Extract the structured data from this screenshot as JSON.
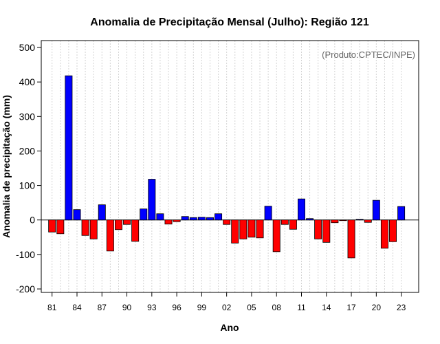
{
  "chart_data": {
    "type": "bar",
    "title": "Anomalia de Precipitação Mensal (Julho): Região 121",
    "xlabel": "Ano",
    "ylabel": "Anomalia de precipitação (mm)",
    "credit": "(Produto:CPTEC/INPE)",
    "ylim": [
      -210,
      520
    ],
    "yticks": [
      -200,
      -100,
      0,
      100,
      200,
      300,
      400,
      500
    ],
    "xlim": [
      1979.7,
      2025.1
    ],
    "xtick_years": [
      1981,
      1984,
      1987,
      1990,
      1993,
      1996,
      1999,
      2002,
      2005,
      2008,
      2011,
      2014,
      2017,
      2020,
      2023
    ],
    "xtick_labels": [
      "81",
      "84",
      "87",
      "90",
      "93",
      "96",
      "99",
      "02",
      "05",
      "08",
      "11",
      "14",
      "17",
      "20",
      "23"
    ],
    "grid": true,
    "colors": {
      "positive": "#0000ff",
      "negative": "#ff0000",
      "grid": "#d3d3d3",
      "axis": "#000000"
    },
    "years": [
      1981,
      1982,
      1983,
      1984,
      1985,
      1986,
      1987,
      1988,
      1989,
      1990,
      1991,
      1992,
      1993,
      1994,
      1995,
      1996,
      1997,
      1998,
      1999,
      2000,
      2001,
      2002,
      2003,
      2004,
      2005,
      2006,
      2007,
      2008,
      2009,
      2010,
      2011,
      2012,
      2013,
      2014,
      2015,
      2016,
      2017,
      2018,
      2019,
      2020,
      2021,
      2022,
      2023
    ],
    "values": [
      -35,
      -40,
      418,
      30,
      -45,
      -55,
      44,
      -90,
      -28,
      -13,
      -62,
      32,
      118,
      18,
      -12,
      -5,
      10,
      7,
      8,
      7,
      18,
      -13,
      -67,
      -55,
      -50,
      -52,
      40,
      -92,
      -13,
      -27,
      61,
      4,
      -55,
      -65,
      -8,
      -2,
      -110,
      2,
      -7,
      57,
      -82,
      -63,
      39
    ]
  }
}
